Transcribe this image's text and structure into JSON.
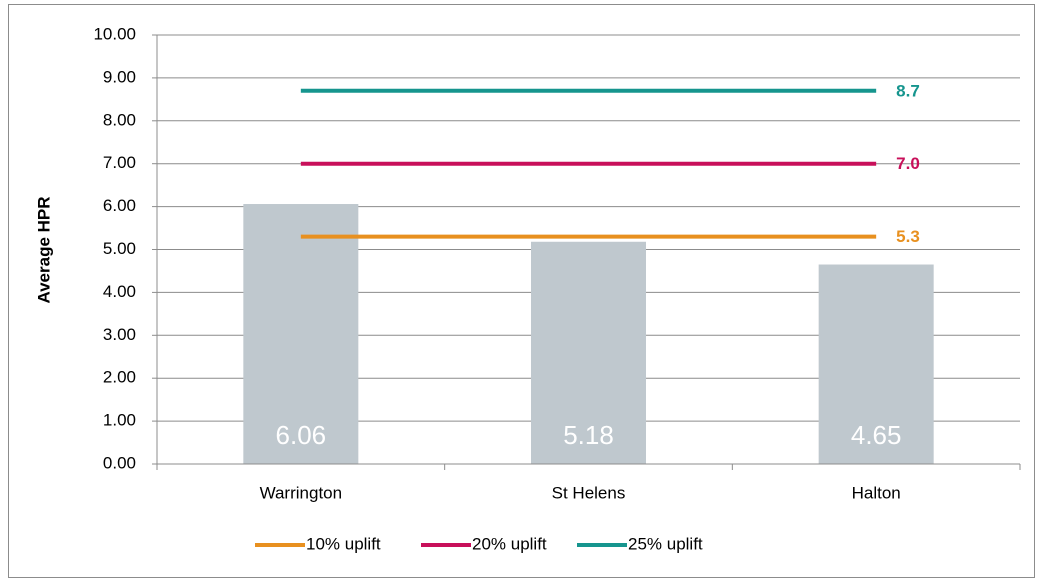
{
  "chart_data": {
    "type": "bar",
    "ylabel": "Average HPR",
    "categories": [
      "Warrington",
      "St Helens",
      "Halton"
    ],
    "values": [
      6.06,
      5.18,
      4.65
    ],
    "color": "#bfc8ce",
    "series": [
      {
        "name": "10% uplift",
        "type": "line",
        "color": "#e8901f",
        "values": [
          5.3,
          5.3,
          5.3
        ],
        "value_labels": [
          null,
          null,
          "5.3"
        ]
      },
      {
        "name": "20% uplift",
        "type": "line",
        "color": "#c8105a",
        "values": [
          7,
          7,
          7
        ],
        "value_labels": [
          null,
          null,
          "7.0"
        ]
      },
      {
        "name": "25% uplift",
        "type": "line",
        "color": "#16958e",
        "values": [
          8.7,
          8.7,
          8.7
        ],
        "value_labels": [
          null,
          null,
          "8.7"
        ]
      }
    ],
    "ylim": [
      0,
      10
    ],
    "yticks": [
      {
        "value": 0,
        "label": "0.00"
      },
      {
        "value": 1,
        "label": "1.00"
      },
      {
        "value": 2,
        "label": "2.00"
      },
      {
        "value": 3,
        "label": "3.00"
      },
      {
        "value": 4,
        "label": "4.00"
      },
      {
        "value": 5,
        "label": "5.00"
      },
      {
        "value": 6,
        "label": "6.00"
      },
      {
        "value": 7,
        "label": "7.00"
      },
      {
        "value": 8,
        "label": "8.00"
      },
      {
        "value": 9,
        "label": "9.00"
      },
      {
        "value": 10,
        "label": "10.00"
      }
    ],
    "grid": true,
    "legend": "bottom"
  }
}
